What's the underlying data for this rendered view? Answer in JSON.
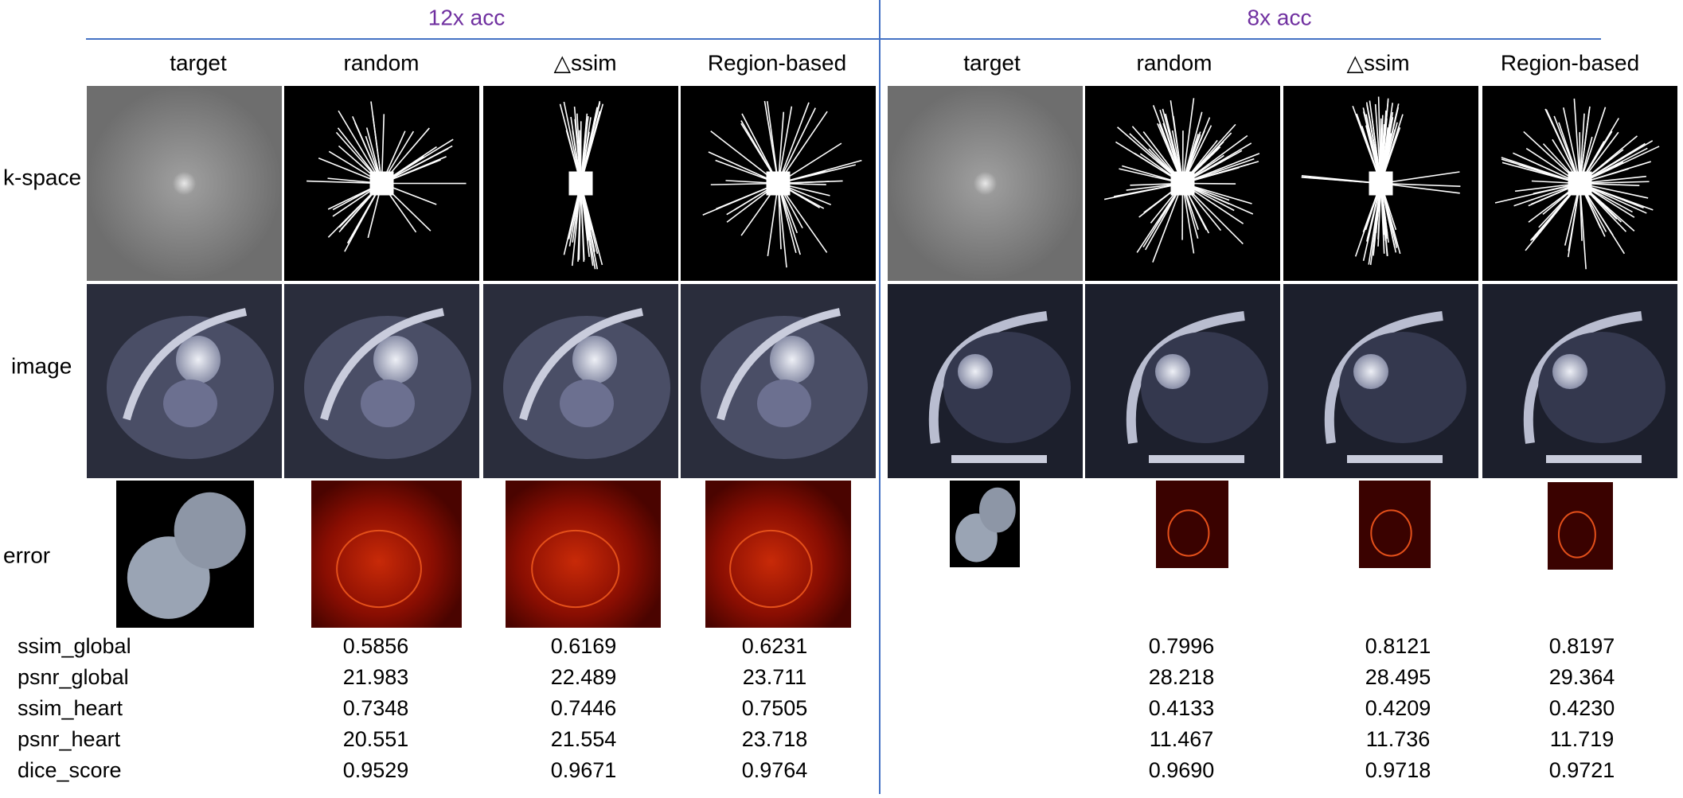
{
  "groups": [
    {
      "title": "12x acc",
      "columns": [
        "target",
        "random",
        "△ssim",
        "Region-based"
      ]
    },
    {
      "title": "8x acc",
      "columns": [
        "target",
        "random",
        "△ssim",
        "Region-based"
      ]
    }
  ],
  "row_labels": [
    "k-space",
    "image",
    "error"
  ],
  "metrics": {
    "rows": [
      {
        "name": "ssim_global",
        "values": [
          "0.5856",
          "0.6169",
          "0.6231",
          "0.7996",
          "0.8121",
          "0.8197"
        ]
      },
      {
        "name": "psnr_global",
        "values": [
          "21.983",
          "22.489",
          "23.711",
          "28.218",
          "28.495",
          "29.364"
        ]
      },
      {
        "name": "ssim_heart",
        "values": [
          "0.7348",
          "0.7446",
          "0.7505",
          "0.4133",
          "0.4209",
          "0.4230"
        ]
      },
      {
        "name": "psnr_heart",
        "values": [
          "20.551",
          "21.554",
          "23.718",
          "11.467",
          "11.736",
          "11.719"
        ]
      },
      {
        "name": "dice_score",
        "values": [
          "0.9529",
          "0.9671",
          "0.9764",
          "0.9690",
          "0.9718",
          "0.9721"
        ]
      }
    ]
  }
}
